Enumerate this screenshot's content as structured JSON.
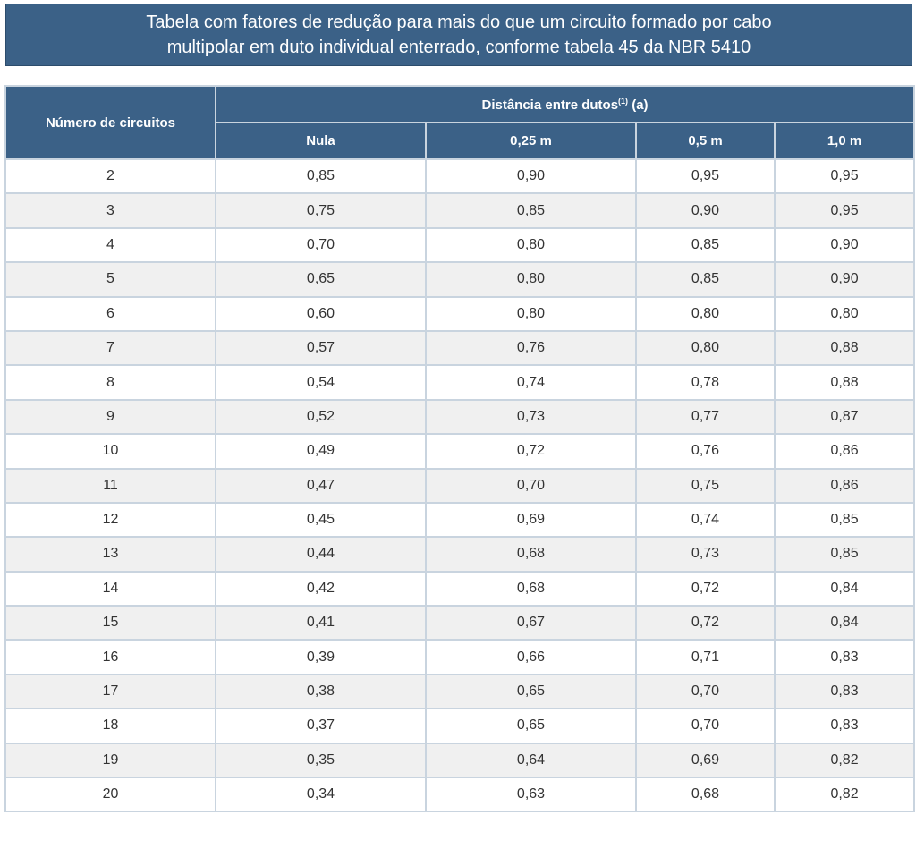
{
  "title": {
    "line1": "Tabela com fatores de redução para mais do que um circuito formado por cabo",
    "line2": "multipolar em duto individual enterrado, conforme tabela 45 da NBR 5410"
  },
  "table": {
    "row_header": "Número de circuitos",
    "group_header": "Distância entre dutos",
    "group_header_sup": "(1)",
    "group_header_suffix": " (a)",
    "columns": [
      "Nula",
      "0,25 m",
      "0,5 m",
      "1,0 m"
    ],
    "rows": [
      [
        "2",
        "0,85",
        "0,90",
        "0,95",
        "0,95"
      ],
      [
        "3",
        "0,75",
        "0,85",
        "0,90",
        "0,95"
      ],
      [
        "4",
        "0,70",
        "0,80",
        "0,85",
        "0,90"
      ],
      [
        "5",
        "0,65",
        "0,80",
        "0,85",
        "0,90"
      ],
      [
        "6",
        "0,60",
        "0,80",
        "0,80",
        "0,80"
      ],
      [
        "7",
        "0,57",
        "0,76",
        "0,80",
        "0,88"
      ],
      [
        "8",
        "0,54",
        "0,74",
        "0,78",
        "0,88"
      ],
      [
        "9",
        "0,52",
        "0,73",
        "0,77",
        "0,87"
      ],
      [
        "10",
        "0,49",
        "0,72",
        "0,76",
        "0,86"
      ],
      [
        "11",
        "0,47",
        "0,70",
        "0,75",
        "0,86"
      ],
      [
        "12",
        "0,45",
        "0,69",
        "0,74",
        "0,85"
      ],
      [
        "13",
        "0,44",
        "0,68",
        "0,73",
        "0,85"
      ],
      [
        "14",
        "0,42",
        "0,68",
        "0,72",
        "0,84"
      ],
      [
        "15",
        "0,41",
        "0,67",
        "0,72",
        "0,84"
      ],
      [
        "16",
        "0,39",
        "0,66",
        "0,71",
        "0,83"
      ],
      [
        "17",
        "0,38",
        "0,65",
        "0,70",
        "0,83"
      ],
      [
        "18",
        "0,37",
        "0,65",
        "0,70",
        "0,83"
      ],
      [
        "19",
        "0,35",
        "0,64",
        "0,69",
        "0,82"
      ],
      [
        "20",
        "0,34",
        "0,63",
        "0,68",
        "0,82"
      ]
    ]
  },
  "colors": {
    "header_bg": "#3b6187",
    "header_text": "#ffffff",
    "grid_border": "#c9d4df",
    "zebra_row": "#f0f0f0"
  }
}
